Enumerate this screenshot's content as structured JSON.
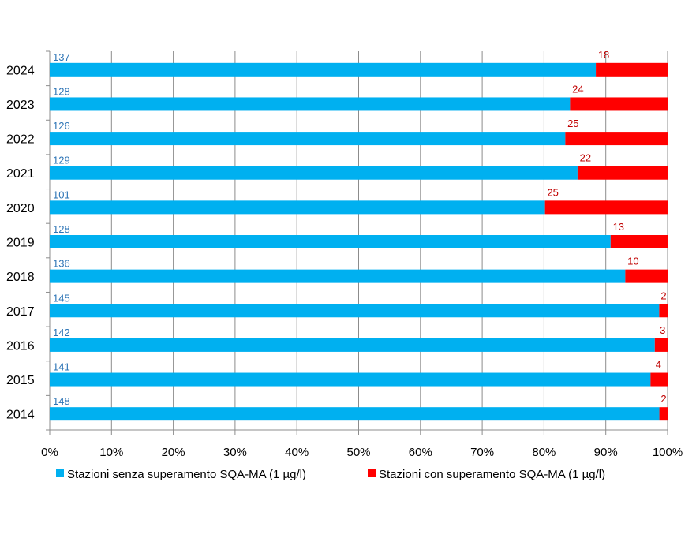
{
  "chart_data": {
    "type": "bar",
    "orientation": "horizontal",
    "stacked": "percent",
    "categories": [
      "2024",
      "2023",
      "2022",
      "2021",
      "2020",
      "2019",
      "2018",
      "2017",
      "2016",
      "2015",
      "2014"
    ],
    "series": [
      {
        "name": "Stazioni senza superamento SQA-MA (1 µg/l)",
        "color": "#00b0f0",
        "label_color": "#2e75b6",
        "values": [
          137,
          128,
          126,
          129,
          101,
          128,
          136,
          145,
          142,
          141,
          148
        ]
      },
      {
        "name": "Stazioni con superamento SQA-MA (1 µg/l)",
        "color": "#ff0000",
        "label_color": "#c00000",
        "values": [
          18,
          24,
          25,
          22,
          25,
          13,
          10,
          2,
          3,
          4,
          2
        ]
      }
    ],
    "xlim": [
      0,
      100
    ],
    "xticks": [
      "0%",
      "10%",
      "20%",
      "30%",
      "40%",
      "50%",
      "60%",
      "70%",
      "80%",
      "90%",
      "100%"
    ],
    "grid": "vertical",
    "legend": "bottom",
    "title": "",
    "xlabel": "",
    "ylabel": ""
  }
}
